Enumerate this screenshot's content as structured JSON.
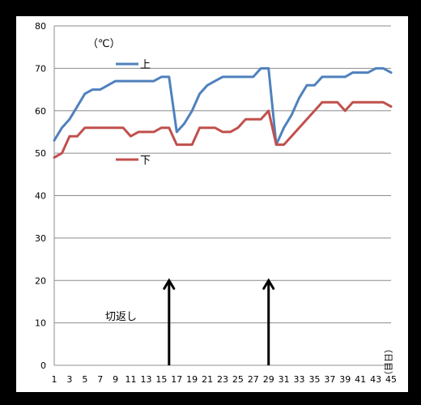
{
  "chart_data": {
    "type": "line",
    "unit_label": "（℃）",
    "x_axis_unit": "（日目）",
    "annotation": "切返し",
    "ylim": [
      0,
      80
    ],
    "yticks": [
      0,
      10,
      20,
      30,
      40,
      50,
      60,
      70,
      80
    ],
    "xlim": [
      1,
      45
    ],
    "xticks": [
      1,
      3,
      5,
      7,
      9,
      11,
      13,
      15,
      17,
      19,
      21,
      23,
      25,
      27,
      29,
      31,
      33,
      35,
      37,
      39,
      41,
      43,
      45
    ],
    "grid": true,
    "legend_position": "inline",
    "arrows_at_x": [
      16,
      29
    ],
    "series": [
      {
        "name": "上",
        "color": "#4f81bd",
        "x": [
          1,
          2,
          3,
          4,
          5,
          6,
          7,
          8,
          9,
          10,
          11,
          12,
          13,
          14,
          15,
          16,
          17,
          18,
          19,
          20,
          21,
          22,
          23,
          24,
          25,
          26,
          27,
          28,
          29,
          30,
          31,
          32,
          33,
          34,
          35,
          36,
          37,
          38,
          39,
          40,
          41,
          42,
          43,
          44,
          45
        ],
        "values": [
          53,
          56,
          58,
          61,
          64,
          65,
          65,
          66,
          67,
          67,
          67,
          67,
          67,
          67,
          68,
          68,
          55,
          57,
          60,
          64,
          66,
          67,
          68,
          68,
          68,
          68,
          68,
          70,
          70,
          52,
          56,
          59,
          63,
          66,
          66,
          68,
          68,
          68,
          68,
          69,
          69,
          69,
          70,
          70,
          69
        ]
      },
      {
        "name": "下",
        "color": "#c0504d",
        "x": [
          1,
          2,
          3,
          4,
          5,
          6,
          7,
          8,
          9,
          10,
          11,
          12,
          13,
          14,
          15,
          16,
          17,
          18,
          19,
          20,
          21,
          22,
          23,
          24,
          25,
          26,
          27,
          28,
          29,
          30,
          31,
          32,
          33,
          34,
          35,
          36,
          37,
          38,
          39,
          40,
          41,
          42,
          43,
          44,
          45
        ],
        "values": [
          49,
          50,
          54,
          54,
          56,
          56,
          56,
          56,
          56,
          56,
          54,
          55,
          55,
          55,
          56,
          56,
          52,
          52,
          52,
          56,
          56,
          56,
          55,
          55,
          56,
          58,
          58,
          58,
          60,
          52,
          52,
          54,
          56,
          58,
          60,
          62,
          62,
          62,
          60,
          62,
          62,
          62,
          62,
          62,
          61
        ]
      }
    ]
  }
}
